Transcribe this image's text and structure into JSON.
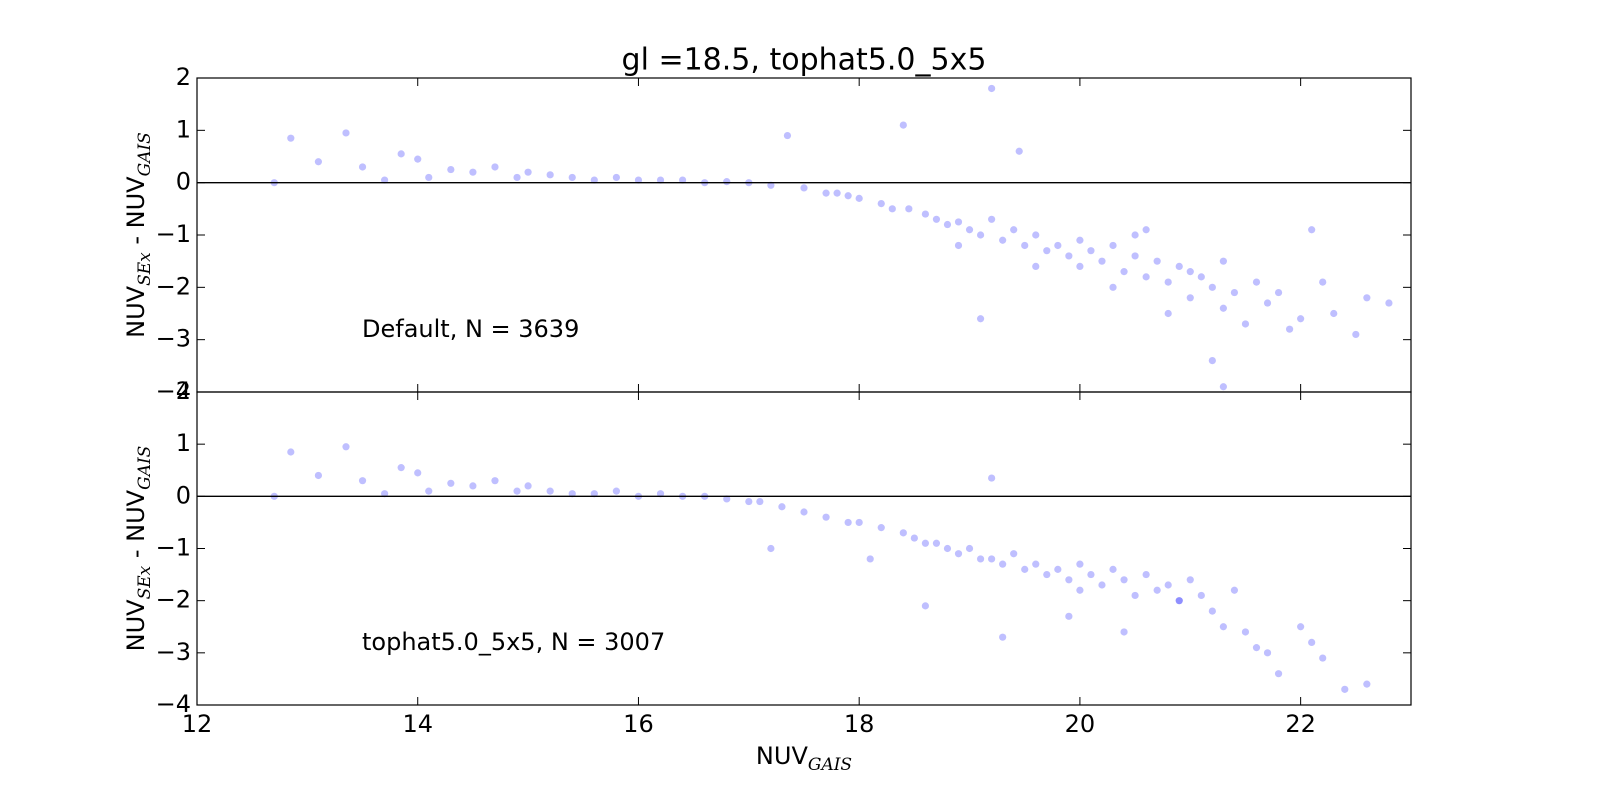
{
  "chart_data": [
    {
      "type": "scatter",
      "title": "gl =18.5, tophat5.0_5x5",
      "ylabel": [
        "NUV",
        "SEx",
        " - NUV",
        "GAIS"
      ],
      "annotation": "Default, N = 3639",
      "xlim": [
        12,
        23
      ],
      "ylim": [
        -4,
        2
      ],
      "xticks": [
        12,
        14,
        16,
        18,
        20,
        22
      ],
      "yticks": [
        {
          "value": -4,
          "label": "−4"
        },
        {
          "value": -3,
          "label": "−3"
        },
        {
          "value": -2,
          "label": "−2"
        },
        {
          "value": -1,
          "label": "−1"
        },
        0,
        1,
        2
      ],
      "hline": 0,
      "alpha": 0.25,
      "series": [
        {
          "color": "#0000ff",
          "x": [
            12.7,
            12.85,
            13.1,
            13.35,
            13.5,
            13.7,
            13.85,
            14.0,
            14.1,
            14.3,
            14.5,
            14.7,
            14.9,
            15.0,
            15.2,
            15.4,
            15.6,
            15.8,
            16.0,
            16.2,
            16.4,
            16.6,
            16.8,
            17.0,
            17.2,
            17.35,
            17.5,
            17.7,
            17.9,
            18.0,
            18.2,
            18.4,
            18.45,
            18.6,
            18.7,
            18.8,
            18.9,
            19.0,
            19.1,
            19.2,
            19.2,
            19.3,
            19.4,
            19.45,
            19.5,
            19.6,
            19.7,
            19.8,
            19.9,
            20.0,
            20.0,
            20.1,
            20.2,
            20.3,
            20.4,
            20.5,
            20.5,
            20.6,
            20.7,
            20.8,
            20.9,
            21.0,
            21.0,
            21.1,
            21.2,
            21.3,
            21.3,
            21.4,
            21.5,
            21.6,
            21.7,
            21.8,
            21.9,
            22.0,
            22.1,
            22.2,
            22.3,
            22.5,
            22.6,
            22.8,
            17.8,
            18.3,
            18.9,
            19.6,
            20.3,
            20.8,
            21.2,
            19.1,
            20.6,
            21.3
          ],
          "y": [
            0,
            0.85,
            0.4,
            0.95,
            0.3,
            0.05,
            0.55,
            0.45,
            0.1,
            0.25,
            0.2,
            0.3,
            0.1,
            0.2,
            0.15,
            0.1,
            0.05,
            0.1,
            0.05,
            0.05,
            0.05,
            0,
            0.02,
            0,
            -0.05,
            0.9,
            -0.1,
            -0.2,
            -0.25,
            -0.3,
            -0.4,
            1.1,
            -0.5,
            -0.6,
            -0.7,
            -0.8,
            -0.75,
            -0.9,
            -1.0,
            1.8,
            -0.7,
            -1.1,
            -0.9,
            0.6,
            -1.2,
            -1.0,
            -1.3,
            -1.2,
            -1.4,
            -1.1,
            -1.6,
            -1.3,
            -1.5,
            -1.2,
            -1.7,
            -1.4,
            -1.0,
            -1.8,
            -1.5,
            -1.9,
            -1.6,
            -1.7,
            -2.2,
            -1.8,
            -2.0,
            -2.4,
            -1.5,
            -2.1,
            -2.7,
            -1.9,
            -2.3,
            -2.1,
            -2.8,
            -2.6,
            -0.9,
            -1.9,
            -2.5,
            -2.9,
            -2.2,
            -2.3,
            -0.2,
            -0.5,
            -1.2,
            -1.6,
            -2.0,
            -2.5,
            -3.4,
            -2.6,
            -0.9,
            -3.9
          ]
        }
      ]
    },
    {
      "type": "scatter",
      "xlabel": [
        "NUV",
        "GAIS"
      ],
      "ylabel": [
        "NUV",
        "SEx",
        " - NUV",
        "GAIS"
      ],
      "annotation": "tophat5.0_5x5, N = 3007",
      "xlim": [
        12,
        23
      ],
      "ylim": [
        -4,
        2
      ],
      "xticks": [
        12,
        14,
        16,
        18,
        20,
        22
      ],
      "yticks": [
        {
          "value": -4,
          "label": "−4"
        },
        {
          "value": -3,
          "label": "−3"
        },
        {
          "value": -2,
          "label": "−2"
        },
        {
          "value": -1,
          "label": "−1"
        },
        0,
        1,
        2
      ],
      "hline": 0,
      "alpha": 0.25,
      "series": [
        {
          "color": "#0000ff",
          "x": [
            12.7,
            12.85,
            13.1,
            13.35,
            13.5,
            13.7,
            13.85,
            14.0,
            14.1,
            14.3,
            14.5,
            14.7,
            14.9,
            15.0,
            15.2,
            15.4,
            15.6,
            15.8,
            16.0,
            16.2,
            16.4,
            16.6,
            16.8,
            17.0,
            17.1,
            17.3,
            17.5,
            17.7,
            17.9,
            18.0,
            18.2,
            18.4,
            18.5,
            18.6,
            18.7,
            18.8,
            18.9,
            19.0,
            19.1,
            19.2,
            19.2,
            19.3,
            19.4,
            19.5,
            19.6,
            19.7,
            19.8,
            19.9,
            20.0,
            20.0,
            20.1,
            20.2,
            20.3,
            20.4,
            20.5,
            20.6,
            20.7,
            20.8,
            20.9,
            21.0,
            21.1,
            21.2,
            21.3,
            21.4,
            21.5,
            21.6,
            21.7,
            21.8,
            22.0,
            22.1,
            22.2,
            22.4,
            22.6,
            17.2,
            18.1,
            18.6,
            19.3,
            19.9,
            20.4,
            20.9
          ],
          "y": [
            0,
            0.85,
            0.4,
            0.95,
            0.3,
            0.05,
            0.55,
            0.45,
            0.1,
            0.25,
            0.2,
            0.3,
            0.1,
            0.2,
            0.1,
            0.05,
            0.05,
            0.1,
            0,
            0.05,
            0,
            0,
            -0.05,
            -0.1,
            -0.1,
            -0.2,
            -0.3,
            -0.4,
            -0.5,
            -0.5,
            -0.6,
            -0.7,
            -0.8,
            -0.9,
            -0.9,
            -1.0,
            -1.1,
            -1.0,
            -1.2,
            0.35,
            -1.2,
            -1.3,
            -1.1,
            -1.4,
            -1.3,
            -1.5,
            -1.4,
            -1.6,
            -1.3,
            -1.8,
            -1.5,
            -1.7,
            -1.4,
            -1.6,
            -1.9,
            -1.5,
            -1.8,
            -1.7,
            -2.0,
            -1.6,
            -1.9,
            -2.2,
            -2.5,
            -1.8,
            -2.6,
            -2.9,
            -3.0,
            -3.4,
            -2.5,
            -2.8,
            -3.1,
            -3.7,
            -3.6,
            -1.0,
            -1.2,
            -2.1,
            -2.7,
            -2.3,
            -2.6,
            -2.0
          ]
        }
      ]
    }
  ]
}
